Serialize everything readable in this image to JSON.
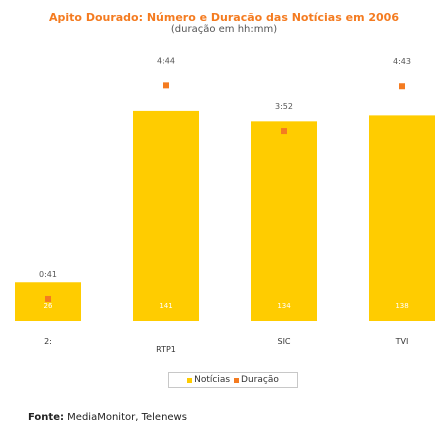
{
  "header": {
    "title": "Apito Dourado: Número e Duracão das Notícias em 2006",
    "subtitle": "(duração em hh:mm)"
  },
  "chart_data": {
    "type": "bar",
    "categories": [
      "2:",
      "RTP1",
      "SIC",
      "TVI"
    ],
    "series": [
      {
        "name": "Notícias",
        "values": [
          26,
          141,
          134,
          138
        ],
        "color": "#ffcc00"
      },
      {
        "name": "Duração",
        "values": [
          "0:41",
          "4:44",
          "3:52",
          "4:43"
        ],
        "color": "#f47b20"
      }
    ],
    "legend_position": "bottom-center",
    "grid": false
  },
  "legend": {
    "noticias_label": "Notícias",
    "duracao_label": "Duração"
  },
  "source": {
    "label": "Fonte:",
    "text": "MediaMonitor, Telenews"
  }
}
